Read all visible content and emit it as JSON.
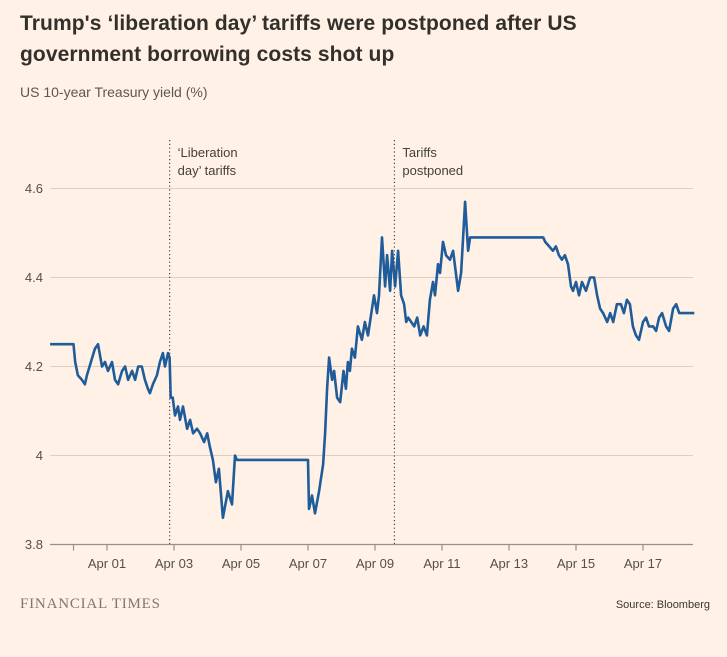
{
  "header": {
    "title": "Trump's ‘liberation day’ tariffs were postponed after US government borrowing costs shot up",
    "subtitle": "US 10-year Treasury yield (%)"
  },
  "footer": {
    "brand": "FINANCIAL TIMES",
    "source": "Source: Bloomberg"
  },
  "colors": {
    "background": "#FFF1E5",
    "line": "#1F5C99",
    "grid": "#DBD0C3",
    "axis": "#989086",
    "dotted_rule": "#4A453E",
    "title_text": "#33302B",
    "muted_text": "#5E5751",
    "label_text": "#544F49"
  },
  "chart_data": {
    "type": "line",
    "title": "US 10-year Treasury yield (%)",
    "xlabel": "",
    "ylabel": "US 10-year Treasury yield (%)",
    "x_unit": "day of April (1 = Apr 01)",
    "xlim": [
      -0.7,
      18.6
    ],
    "ylim": [
      3.8,
      4.6
    ],
    "grid": "horizontal",
    "legend": "none",
    "y_ticks": [
      {
        "value": 3.8,
        "label": "3.8"
      },
      {
        "value": 4.0,
        "label": "4"
      },
      {
        "value": 4.2,
        "label": "4.2"
      },
      {
        "value": 4.4,
        "label": "4.4"
      },
      {
        "value": 4.6,
        "label": "4.6"
      }
    ],
    "x_ticks": [
      {
        "day": 0,
        "label": ""
      },
      {
        "day": 1,
        "label": "Apr 01"
      },
      {
        "day": 3,
        "label": "Apr 03"
      },
      {
        "day": 5,
        "label": "Apr 05"
      },
      {
        "day": 7,
        "label": "Apr 07"
      },
      {
        "day": 9,
        "label": "Apr 09"
      },
      {
        "day": 11,
        "label": "Apr 11"
      },
      {
        "day": 13,
        "label": "Apr 13"
      },
      {
        "day": 15,
        "label": "Apr 15"
      },
      {
        "day": 17,
        "label": "Apr 17"
      }
    ],
    "annotations": [
      {
        "day": 2.87,
        "lines": [
          "‘Liberation",
          "day’ tariffs"
        ]
      },
      {
        "day": 9.58,
        "lines": [
          "Tariffs",
          "postponed"
        ]
      }
    ],
    "series": [
      {
        "name": "US 10-year Treasury yield (%)",
        "points": [
          [
            -0.7,
            4.25
          ],
          [
            0.0,
            4.25
          ],
          [
            0.05,
            4.21
          ],
          [
            0.13,
            4.18
          ],
          [
            0.25,
            4.17
          ],
          [
            0.34,
            4.16
          ],
          [
            0.4,
            4.18
          ],
          [
            0.64,
            4.24
          ],
          [
            0.73,
            4.25
          ],
          [
            0.85,
            4.2
          ],
          [
            0.94,
            4.21
          ],
          [
            1.03,
            4.19
          ],
          [
            1.15,
            4.21
          ],
          [
            1.24,
            4.17
          ],
          [
            1.33,
            4.16
          ],
          [
            1.45,
            4.19
          ],
          [
            1.54,
            4.2
          ],
          [
            1.63,
            4.17
          ],
          [
            1.75,
            4.19
          ],
          [
            1.84,
            4.17
          ],
          [
            1.93,
            4.2
          ],
          [
            2.04,
            4.2
          ],
          [
            2.13,
            4.17
          ],
          [
            2.22,
            4.15
          ],
          [
            2.28,
            4.14
          ],
          [
            2.37,
            4.16
          ],
          [
            2.49,
            4.18
          ],
          [
            2.58,
            4.21
          ],
          [
            2.67,
            4.23
          ],
          [
            2.73,
            4.2
          ],
          [
            2.82,
            4.23
          ],
          [
            2.87,
            4.22
          ],
          [
            2.9,
            4.13
          ],
          [
            2.96,
            4.13
          ],
          [
            3.03,
            4.09
          ],
          [
            3.12,
            4.11
          ],
          [
            3.18,
            4.08
          ],
          [
            3.27,
            4.11
          ],
          [
            3.39,
            4.06
          ],
          [
            3.48,
            4.08
          ],
          [
            3.57,
            4.05
          ],
          [
            3.69,
            4.06
          ],
          [
            3.78,
            4.05
          ],
          [
            3.9,
            4.03
          ],
          [
            3.99,
            4.05
          ],
          [
            4.07,
            4.02
          ],
          [
            4.16,
            3.99
          ],
          [
            4.25,
            3.94
          ],
          [
            4.34,
            3.97
          ],
          [
            4.46,
            3.86
          ],
          [
            4.61,
            3.92
          ],
          [
            4.73,
            3.89
          ],
          [
            4.82,
            4.0
          ],
          [
            4.88,
            3.99
          ],
          [
            7.0,
            3.99
          ],
          [
            7.03,
            3.88
          ],
          [
            7.12,
            3.91
          ],
          [
            7.21,
            3.87
          ],
          [
            7.33,
            3.92
          ],
          [
            7.45,
            3.98
          ],
          [
            7.51,
            4.05
          ],
          [
            7.57,
            4.15
          ],
          [
            7.63,
            4.22
          ],
          [
            7.72,
            4.17
          ],
          [
            7.78,
            4.19
          ],
          [
            7.87,
            4.13
          ],
          [
            7.96,
            4.12
          ],
          [
            8.06,
            4.19
          ],
          [
            8.13,
            4.15
          ],
          [
            8.19,
            4.21
          ],
          [
            8.25,
            4.19
          ],
          [
            8.31,
            4.24
          ],
          [
            8.4,
            4.22
          ],
          [
            8.49,
            4.29
          ],
          [
            8.61,
            4.26
          ],
          [
            8.7,
            4.3
          ],
          [
            8.79,
            4.27
          ],
          [
            8.91,
            4.33
          ],
          [
            8.97,
            4.36
          ],
          [
            9.06,
            4.32
          ],
          [
            9.12,
            4.36
          ],
          [
            9.21,
            4.49
          ],
          [
            9.3,
            4.38
          ],
          [
            9.36,
            4.45
          ],
          [
            9.45,
            4.37
          ],
          [
            9.51,
            4.46
          ],
          [
            9.6,
            4.38
          ],
          [
            9.69,
            4.46
          ],
          [
            9.78,
            4.36
          ],
          [
            9.87,
            4.34
          ],
          [
            9.93,
            4.3
          ],
          [
            9.99,
            4.31
          ],
          [
            10.08,
            4.3
          ],
          [
            10.17,
            4.29
          ],
          [
            10.26,
            4.31
          ],
          [
            10.35,
            4.27
          ],
          [
            10.45,
            4.29
          ],
          [
            10.55,
            4.27
          ],
          [
            10.64,
            4.35
          ],
          [
            10.73,
            4.39
          ],
          [
            10.79,
            4.36
          ],
          [
            10.88,
            4.43
          ],
          [
            10.94,
            4.41
          ],
          [
            11.03,
            4.48
          ],
          [
            11.12,
            4.45
          ],
          [
            11.24,
            4.44
          ],
          [
            11.33,
            4.46
          ],
          [
            11.48,
            4.37
          ],
          [
            11.57,
            4.41
          ],
          [
            11.69,
            4.57
          ],
          [
            11.78,
            4.46
          ],
          [
            11.84,
            4.49
          ],
          [
            14.02,
            4.49
          ],
          [
            14.08,
            4.48
          ],
          [
            14.2,
            4.47
          ],
          [
            14.31,
            4.46
          ],
          [
            14.4,
            4.47
          ],
          [
            14.49,
            4.45
          ],
          [
            14.58,
            4.44
          ],
          [
            14.67,
            4.45
          ],
          [
            14.76,
            4.43
          ],
          [
            14.85,
            4.38
          ],
          [
            14.91,
            4.37
          ],
          [
            15.0,
            4.39
          ],
          [
            15.09,
            4.36
          ],
          [
            15.18,
            4.39
          ],
          [
            15.3,
            4.37
          ],
          [
            15.42,
            4.4
          ],
          [
            15.54,
            4.4
          ],
          [
            15.63,
            4.36
          ],
          [
            15.72,
            4.33
          ],
          [
            15.81,
            4.32
          ],
          [
            15.93,
            4.3
          ],
          [
            16.02,
            4.32
          ],
          [
            16.11,
            4.3
          ],
          [
            16.22,
            4.34
          ],
          [
            16.34,
            4.34
          ],
          [
            16.43,
            4.32
          ],
          [
            16.52,
            4.35
          ],
          [
            16.61,
            4.34
          ],
          [
            16.7,
            4.29
          ],
          [
            16.79,
            4.27
          ],
          [
            16.88,
            4.26
          ],
          [
            17.0,
            4.3
          ],
          [
            17.09,
            4.31
          ],
          [
            17.18,
            4.29
          ],
          [
            17.3,
            4.29
          ],
          [
            17.39,
            4.28
          ],
          [
            17.48,
            4.31
          ],
          [
            17.57,
            4.32
          ],
          [
            17.69,
            4.29
          ],
          [
            17.78,
            4.28
          ],
          [
            17.9,
            4.33
          ],
          [
            17.99,
            4.34
          ],
          [
            18.08,
            4.32
          ],
          [
            18.16,
            4.32
          ],
          [
            18.53,
            4.32
          ]
        ]
      }
    ]
  }
}
